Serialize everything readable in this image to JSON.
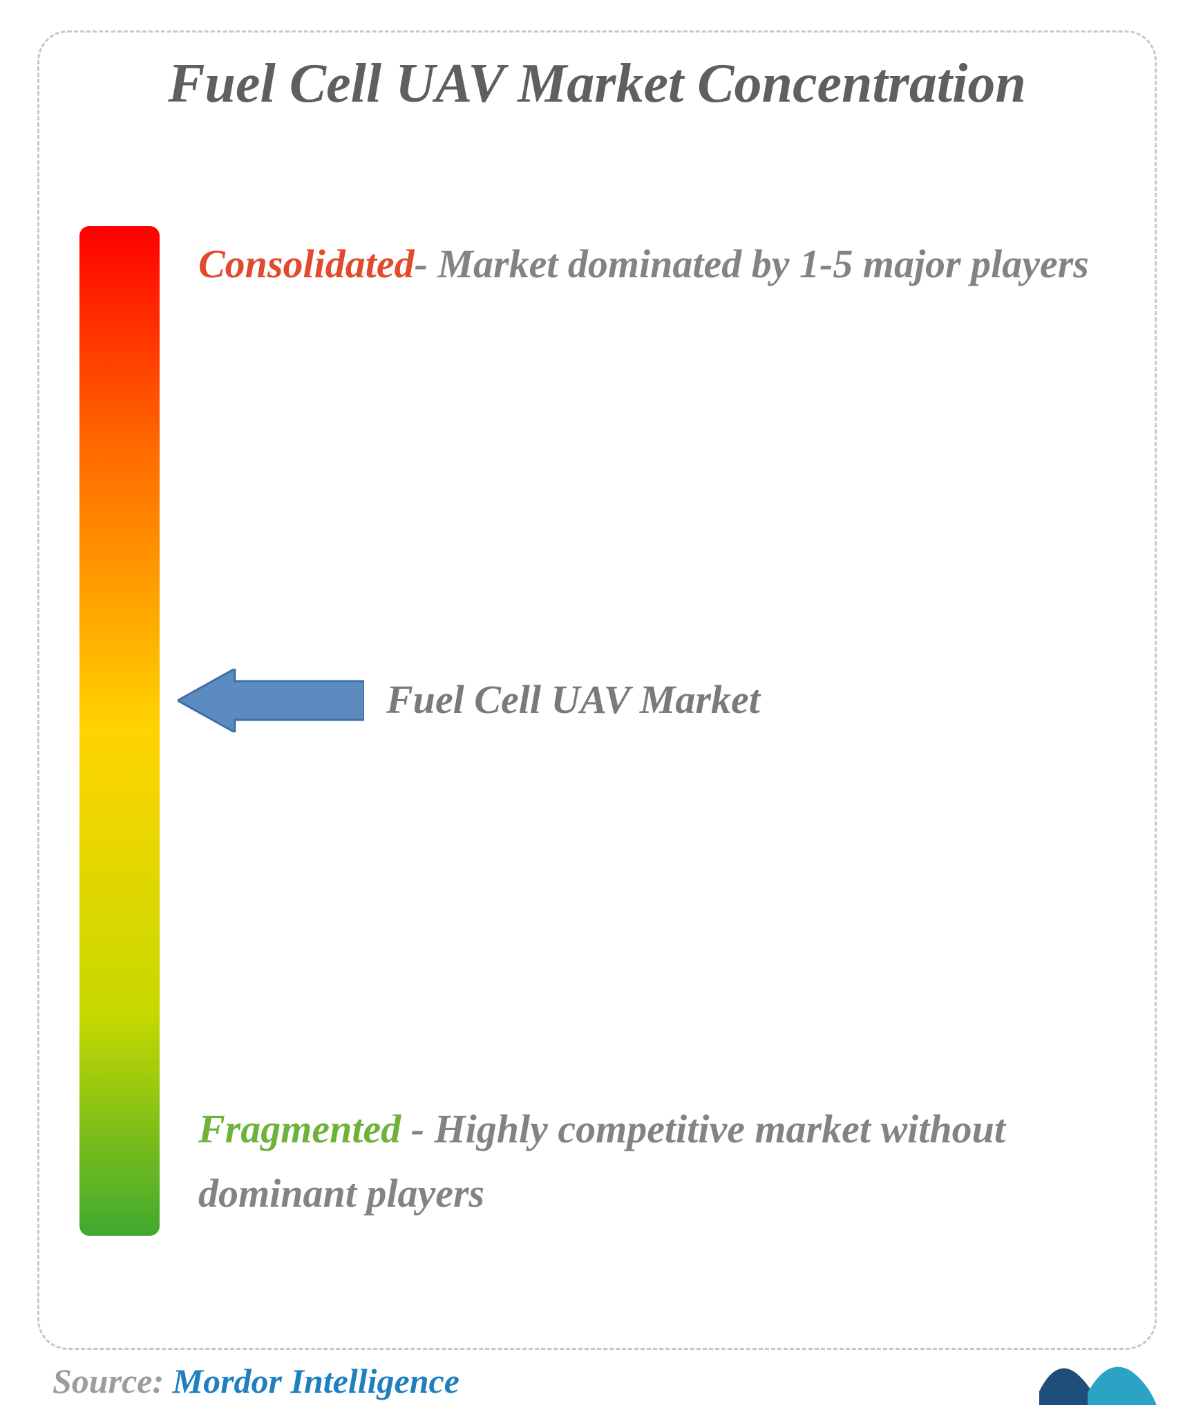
{
  "title": "Fuel Cell UAV Market Concentration",
  "title_fontsize": 80,
  "title_color": "#5f5f5f",
  "spectrum": {
    "top_color": "#ff0000",
    "mid_top_color": "#ff6a00",
    "mid_color": "#ffd400",
    "mid_bot_color": "#c6d900",
    "bottom_color": "#3fa82f",
    "border_radius": 14
  },
  "consolidated": {
    "lead": "Consolidated",
    "lead_color": "#e24a2d",
    "rest": "- Market dominated by 1-5 major players",
    "fontsize": 58
  },
  "fragmented": {
    "lead": "Fragmented",
    "lead_color": "#6fb23a",
    "rest": " - Highly competitive market without dominant players",
    "fontsize": 58
  },
  "marker": {
    "label": "Fuel Cell UAV Market",
    "label_fontsize": 58,
    "position_pct": 47,
    "arrow_fill": "#5b8bbf",
    "arrow_stroke": "#3f6fa5",
    "arrow_width": 270,
    "arrow_height": 92,
    "arrow_tail_height": 56
  },
  "source": {
    "key": "Source:",
    "value": " Mordor Intelligence",
    "fontsize": 50
  },
  "logo": {
    "color_a": "#1e4e79",
    "color_b": "#2aa3c4"
  }
}
